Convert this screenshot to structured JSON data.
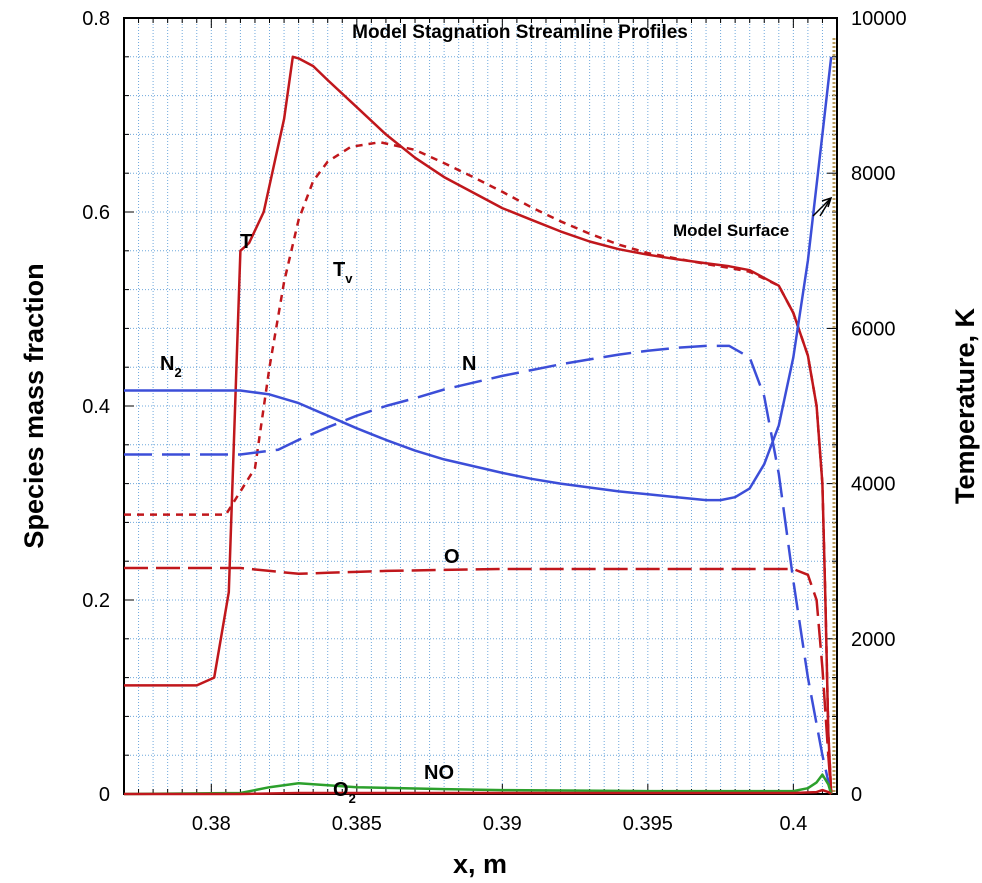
{
  "chart_data": {
    "type": "line",
    "title": "Model Stagnation Streamline Profiles",
    "xlabel": "x, m",
    "ylabel_left": "Species mass fraction",
    "ylabel_right": "Temperature, K",
    "xlim": [
      0.377,
      0.4015
    ],
    "ylim_left": [
      0,
      0.8
    ],
    "ylim_right": [
      0,
      10000
    ],
    "grid": true,
    "xticks": [
      "0.38",
      "0.385",
      "0.39",
      "0.395",
      "0.4"
    ],
    "yticks_left": [
      "0",
      "0.2",
      "0.4",
      "0.6",
      "0.8"
    ],
    "yticks_right": [
      "0",
      "2000",
      "4000",
      "6000",
      "8000",
      "10000"
    ],
    "colors": {
      "temperature": "#c0171c",
      "nitrogen": "#3c4ed8",
      "no": "#2ca02c",
      "grid": "#6fa8dc"
    },
    "annotations": {
      "T": "T",
      "Tv_base": "T",
      "Tv_sub": "v",
      "N2_base": "N",
      "N2_sub": "2",
      "N": "N",
      "O": "O",
      "NO": "NO",
      "O2_base": "O",
      "O2_sub": "2",
      "surface": "Model Surface"
    },
    "series": [
      {
        "key": "T",
        "axis": "right",
        "style": "solid",
        "color": "#c0171c",
        "x": [
          0.377,
          0.3795,
          0.3801,
          0.3806,
          0.381,
          0.3813,
          0.3818,
          0.3825,
          0.3828,
          0.383,
          0.3835,
          0.384,
          0.385,
          0.386,
          0.387,
          0.388,
          0.389,
          0.39,
          0.391,
          0.392,
          0.393,
          0.394,
          0.395,
          0.396,
          0.397,
          0.3978,
          0.3985,
          0.3995,
          0.4,
          0.4005,
          0.4008,
          0.401,
          0.4011,
          0.4012,
          0.4013
        ],
        "y": [
          1400,
          1400,
          1500,
          2600,
          7000,
          7100,
          7500,
          8700,
          9500,
          9480,
          9380,
          9200,
          8850,
          8500,
          8200,
          7950,
          7750,
          7550,
          7400,
          7250,
          7120,
          7020,
          6950,
          6890,
          6840,
          6800,
          6750,
          6550,
          6200,
          5650,
          5000,
          4000,
          2500,
          800,
          0
        ]
      },
      {
        "key": "Tv",
        "axis": "right",
        "style": "dashed",
        "color": "#c0171c",
        "x": [
          0.377,
          0.3805,
          0.3815,
          0.382,
          0.3825,
          0.383,
          0.3835,
          0.384,
          0.3848,
          0.3858,
          0.387,
          0.388,
          0.389,
          0.39,
          0.391,
          0.392,
          0.393,
          0.394,
          0.395,
          0.396,
          0.397,
          0.3978,
          0.3985,
          0.3995,
          0.4,
          0.4005,
          0.4008,
          0.401,
          0.4011,
          0.4012,
          0.4013
        ],
        "y": [
          3600,
          3600,
          4200,
          5500,
          6600,
          7400,
          7900,
          8150,
          8340,
          8400,
          8300,
          8130,
          7950,
          7760,
          7560,
          7380,
          7220,
          7080,
          6970,
          6900,
          6830,
          6780,
          6730,
          6550,
          6200,
          5650,
          5000,
          4000,
          2500,
          800,
          0
        ]
      },
      {
        "key": "N2",
        "axis": "left",
        "style": "solid",
        "color": "#3c4ed8",
        "x": [
          0.377,
          0.3795,
          0.381,
          0.382,
          0.383,
          0.384,
          0.385,
          0.386,
          0.387,
          0.388,
          0.389,
          0.39,
          0.391,
          0.392,
          0.393,
          0.394,
          0.395,
          0.396,
          0.397,
          0.3975,
          0.398,
          0.3985,
          0.399,
          0.3995,
          0.4,
          0.4005,
          0.401,
          0.4013
        ],
        "y": [
          0.416,
          0.416,
          0.416,
          0.412,
          0.403,
          0.39,
          0.377,
          0.365,
          0.354,
          0.345,
          0.338,
          0.331,
          0.325,
          0.32,
          0.316,
          0.312,
          0.309,
          0.306,
          0.303,
          0.303,
          0.306,
          0.315,
          0.34,
          0.38,
          0.45,
          0.55,
          0.68,
          0.76
        ]
      },
      {
        "key": "N",
        "axis": "left",
        "style": "dashed",
        "color": "#3c4ed8",
        "x": [
          0.377,
          0.381,
          0.3823,
          0.383,
          0.384,
          0.385,
          0.386,
          0.387,
          0.388,
          0.389,
          0.39,
          0.391,
          0.392,
          0.393,
          0.394,
          0.395,
          0.396,
          0.397,
          0.3978,
          0.3985,
          0.399,
          0.3995,
          0.4,
          0.4005,
          0.401,
          0.4013
        ],
        "y": [
          0.35,
          0.35,
          0.355,
          0.365,
          0.378,
          0.39,
          0.4,
          0.408,
          0.417,
          0.424,
          0.431,
          0.437,
          0.443,
          0.448,
          0.453,
          0.457,
          0.46,
          0.462,
          0.462,
          0.45,
          0.41,
          0.33,
          0.22,
          0.12,
          0.04,
          0.0
        ]
      },
      {
        "key": "O",
        "axis": "left",
        "style": "dashed",
        "color": "#c0171c",
        "x": [
          0.377,
          0.381,
          0.382,
          0.383,
          0.384,
          0.385,
          0.386,
          0.388,
          0.39,
          0.395,
          0.4,
          0.4005,
          0.4008,
          0.401,
          0.4012,
          0.4013
        ],
        "y": [
          0.233,
          0.233,
          0.23,
          0.227,
          0.228,
          0.229,
          0.23,
          0.231,
          0.232,
          0.232,
          0.232,
          0.226,
          0.2,
          0.13,
          0.04,
          0.0
        ]
      },
      {
        "key": "NO",
        "axis": "left",
        "style": "solid",
        "color": "#2ca02c",
        "x": [
          0.377,
          0.381,
          0.382,
          0.383,
          0.384,
          0.385,
          0.388,
          0.39,
          0.395,
          0.4,
          0.4005,
          0.4008,
          0.401,
          0.4012,
          0.4013
        ],
        "y": [
          0.0,
          0.001,
          0.007,
          0.011,
          0.009,
          0.007,
          0.005,
          0.004,
          0.003,
          0.003,
          0.006,
          0.012,
          0.02,
          0.01,
          0.0
        ]
      },
      {
        "key": "O2",
        "axis": "left",
        "style": "solid",
        "color": "#c0171c",
        "x": [
          0.377,
          0.381,
          0.383,
          0.385,
          0.39,
          0.395,
          0.4,
          0.4008,
          0.401,
          0.4012,
          0.4013
        ],
        "y": [
          0.0,
          0.0,
          0.001,
          0.001,
          0.001,
          0.001,
          0.001,
          0.002,
          0.004,
          0.002,
          0.0
        ]
      }
    ]
  }
}
